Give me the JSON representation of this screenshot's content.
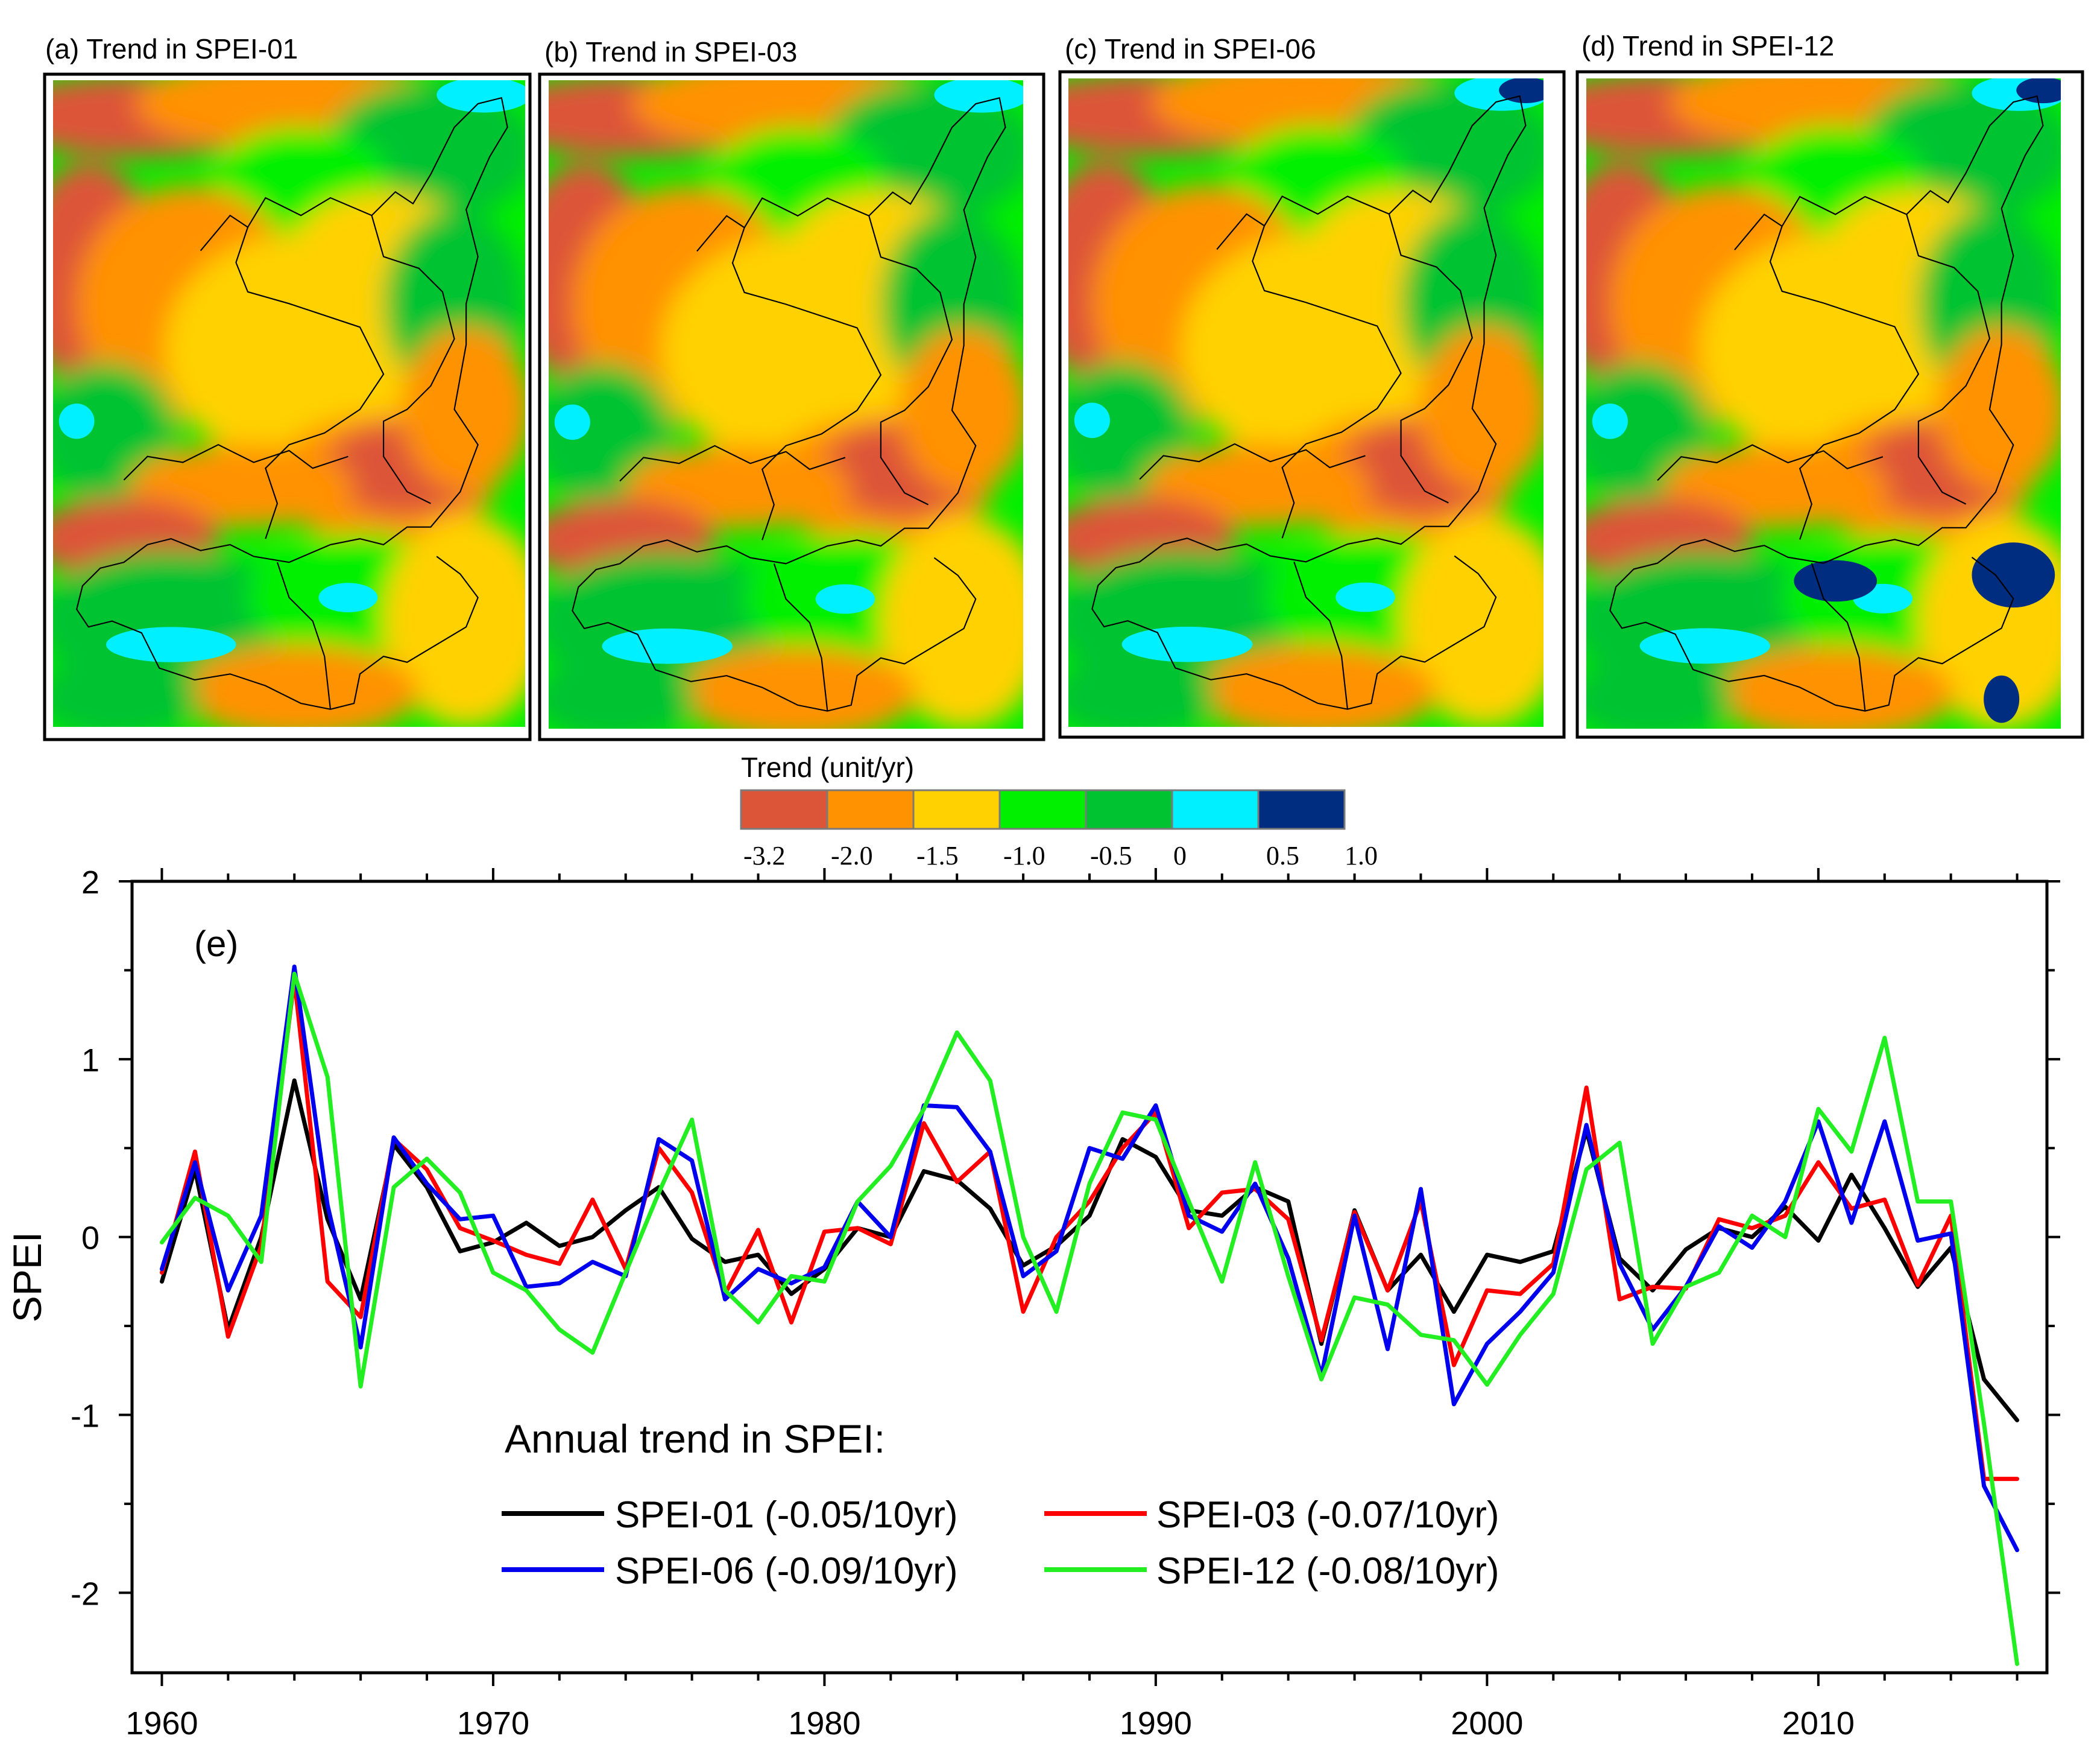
{
  "panels": [
    {
      "label": "(a) Trend in SPEI-01"
    },
    {
      "label": "(b) Trend in SPEI-03"
    },
    {
      "label": "(c) Trend in SPEI-06"
    },
    {
      "label": "(d) Trend in SPEI-12"
    }
  ],
  "colorbar": {
    "title": "Trend (unit/yr)",
    "colors": [
      "#dd5539",
      "#ff9200",
      "#ffd100",
      "#00f000",
      "#00c331",
      "#00f0ff",
      "#002d80"
    ],
    "ticks": [
      "-3.2",
      "-2.0",
      "-1.5",
      "-1.0",
      "-0.5",
      "0",
      "0.5",
      "1.0"
    ]
  },
  "colors": {
    "map_red": "#dd5539",
    "map_orange": "#ff9200",
    "map_yellow": "#ffd100",
    "map_lime": "#00f000",
    "map_green": "#00c331",
    "map_cyan": "#00f0ff",
    "map_navy": "#002d80"
  },
  "chart_data": {
    "type": "line",
    "panel_label": "(e)",
    "title": "",
    "xlabel": "",
    "ylabel": "SPEI",
    "xlim": [
      1959.1,
      2016.9
    ],
    "ylim": [
      -2.45,
      2.0
    ],
    "xticks": [
      1960,
      1970,
      1980,
      1990,
      2000,
      2010
    ],
    "yticks": [
      -2,
      -1,
      0,
      1,
      2
    ],
    "x": [
      1960,
      1961,
      1962,
      1963,
      1964,
      1965,
      1966,
      1967,
      1968,
      1969,
      1970,
      1971,
      1972,
      1973,
      1974,
      1975,
      1976,
      1977,
      1978,
      1979,
      1980,
      1981,
      1982,
      1983,
      1984,
      1985,
      1986,
      1987,
      1988,
      1989,
      1990,
      1991,
      1992,
      1993,
      1994,
      1995,
      1996,
      1997,
      1998,
      1999,
      2000,
      2001,
      2002,
      2003,
      2004,
      2005,
      2006,
      2007,
      2008,
      2009,
      2010,
      2011,
      2012,
      2013,
      2014,
      2015,
      2016
    ],
    "legend_title": "Annual trend in SPEI:",
    "series": [
      {
        "name": "SPEI-01 (-0.05/10yr)",
        "color": "#000000",
        "values": [
          -0.25,
          0.38,
          -0.52,
          0.0,
          0.88,
          0.1,
          -0.35,
          0.52,
          0.28,
          -0.08,
          -0.03,
          0.08,
          -0.05,
          0.0,
          0.15,
          0.28,
          -0.01,
          -0.14,
          -0.1,
          -0.32,
          -0.18,
          0.05,
          0.0,
          0.37,
          0.32,
          0.16,
          -0.16,
          -0.05,
          0.12,
          0.55,
          0.45,
          0.15,
          0.12,
          0.28,
          0.2,
          -0.6,
          0.15,
          -0.3,
          -0.1,
          -0.42,
          -0.1,
          -0.14,
          -0.08,
          0.6,
          -0.12,
          -0.3,
          -0.07,
          0.05,
          0.0,
          0.17,
          -0.02,
          0.35,
          0.05,
          -0.28,
          -0.06,
          -0.8,
          -1.03
        ]
      },
      {
        "name": "SPEI-03 (-0.07/10yr)",
        "color": "#ff0000",
        "values": [
          -0.2,
          0.48,
          -0.56,
          -0.05,
          1.45,
          -0.25,
          -0.45,
          0.55,
          0.38,
          0.05,
          -0.02,
          -0.1,
          -0.15,
          0.21,
          -0.18,
          0.5,
          0.25,
          -0.32,
          0.04,
          -0.48,
          0.03,
          0.05,
          -0.04,
          0.64,
          0.31,
          0.48,
          -0.42,
          0.0,
          0.2,
          0.5,
          0.7,
          0.05,
          0.25,
          0.27,
          0.1,
          -0.58,
          0.14,
          -0.3,
          0.2,
          -0.72,
          -0.3,
          -0.32,
          -0.15,
          0.84,
          -0.35,
          -0.28,
          -0.29,
          0.1,
          0.05,
          0.12,
          0.42,
          0.16,
          0.21,
          -0.27,
          0.12,
          -1.36,
          -1.36
        ]
      },
      {
        "name": "SPEI-06 (-0.09/10yr)",
        "color": "#0000ee",
        "values": [
          -0.18,
          0.42,
          -0.3,
          0.12,
          1.52,
          0.18,
          -0.62,
          0.56,
          0.3,
          0.1,
          0.12,
          -0.28,
          -0.26,
          -0.14,
          -0.22,
          0.55,
          0.43,
          -0.35,
          -0.18,
          -0.26,
          -0.17,
          0.2,
          0.0,
          0.74,
          0.73,
          0.48,
          -0.22,
          -0.08,
          0.5,
          0.44,
          0.74,
          0.12,
          0.03,
          0.3,
          -0.12,
          -0.78,
          0.12,
          -0.63,
          0.27,
          -0.94,
          -0.6,
          -0.42,
          -0.2,
          0.63,
          -0.15,
          -0.52,
          -0.28,
          0.06,
          -0.06,
          0.2,
          0.65,
          0.08,
          0.65,
          -0.02,
          0.02,
          -1.4,
          -1.76
        ]
      },
      {
        "name": "SPEI-12 (-0.08/10yr)",
        "color": "#22ee22",
        "values": [
          -0.03,
          0.22,
          0.12,
          -0.14,
          1.48,
          0.9,
          -0.84,
          0.28,
          0.44,
          0.25,
          -0.2,
          -0.3,
          -0.52,
          -0.65,
          -0.2,
          0.25,
          0.66,
          -0.3,
          -0.48,
          -0.22,
          -0.25,
          0.2,
          0.4,
          0.72,
          1.15,
          0.88,
          0.0,
          -0.42,
          0.3,
          0.7,
          0.66,
          0.2,
          -0.25,
          0.42,
          -0.22,
          -0.8,
          -0.34,
          -0.38,
          -0.55,
          -0.58,
          -0.83,
          -0.55,
          -0.32,
          0.38,
          0.53,
          -0.6,
          -0.28,
          -0.2,
          0.12,
          0.0,
          0.72,
          0.48,
          1.12,
          0.2,
          0.2,
          -1.05,
          -2.4
        ]
      }
    ]
  }
}
